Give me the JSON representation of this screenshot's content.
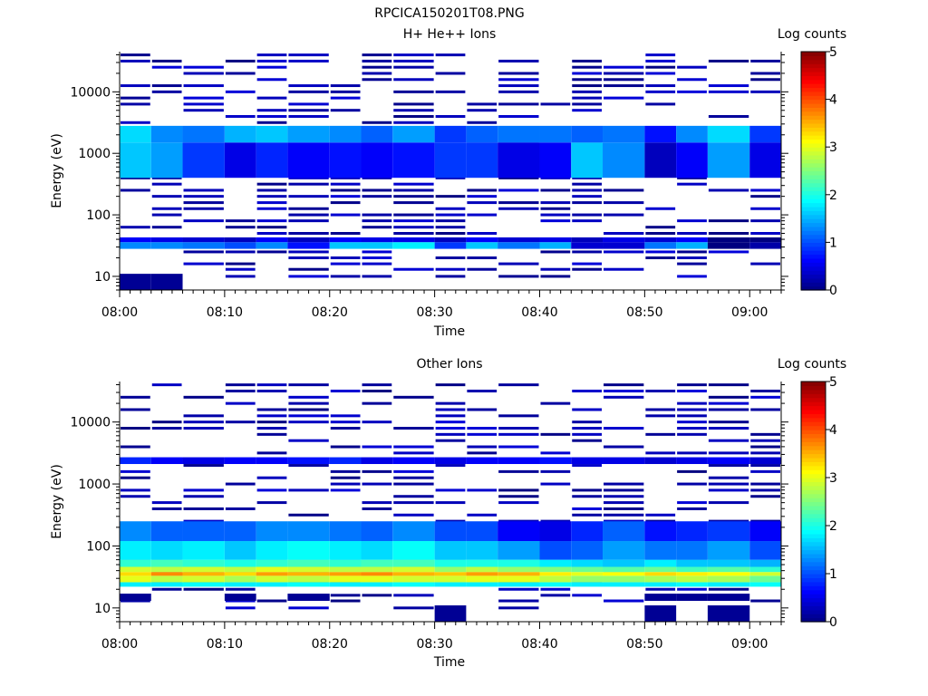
{
  "figure_title": "RPCICA150201T08.PNG",
  "chart_data": [
    {
      "type": "heatmap",
      "title": "H+ He++ Ions",
      "xlabel": "Time",
      "ylabel": "Energy (eV)",
      "x_ticks": [
        "08:00",
        "08:10",
        "08:20",
        "08:30",
        "08:40",
        "08:50",
        "09:00"
      ],
      "y_ticks": [
        "10",
        "100",
        "1000",
        "10000"
      ],
      "y_scale": "log",
      "ylim": [
        6,
        45000
      ],
      "xlim": [
        "08:00",
        "09:03"
      ],
      "colorbar": {
        "label": "Log counts",
        "ticks": [
          "0",
          "1",
          "2",
          "3",
          "4",
          "5"
        ],
        "range": [
          0,
          5
        ],
        "colormap": "jet"
      },
      "time_bins": [
        "08:00",
        "08:03",
        "08:06",
        "08:10",
        "08:13",
        "08:16",
        "08:20",
        "08:23",
        "08:26",
        "08:30",
        "08:33",
        "08:36",
        "08:40",
        "08:43",
        "08:46",
        "08:50",
        "08:53",
        "08:56",
        "09:00"
      ],
      "energy_bins_eV": [
        10,
        13,
        16,
        20,
        25,
        31,
        40,
        50,
        63,
        80,
        100,
        126,
        158,
        200,
        251,
        316,
        398,
        501,
        631,
        794,
        1000,
        1259,
        1585,
        1995,
        2512,
        3162,
        3981,
        5012,
        6310,
        7943,
        10000,
        12589,
        15849,
        19953,
        25119,
        31623,
        39811
      ],
      "bands": [
        {
          "e_min": 28,
          "e_max": 36,
          "log_counts": [
            1.3,
            1.3,
            1.2,
            1.0,
            1.3,
            0.7,
            1.6,
            1.6,
            1.8,
            0.9,
            1.6,
            1.2,
            1.5,
            0.4,
            0.4,
            1.2,
            1.5,
            0,
            0.2
          ]
        },
        {
          "e_min": 36,
          "e_max": 43,
          "log_counts": [
            0.6,
            0.5,
            0.4,
            0.3,
            0.6,
            0.3,
            0.6,
            0.5,
            0.5,
            0.3,
            0.6,
            0.4,
            0.5,
            0.3,
            0.5,
            0.4,
            0.6,
            0,
            0
          ]
        },
        {
          "e_min": 400,
          "e_max": 1500,
          "log_counts": [
            1.6,
            1.4,
            0.9,
            0.5,
            0.8,
            0.6,
            0.7,
            0.6,
            0.7,
            0.9,
            0.9,
            0.5,
            0.6,
            1.6,
            1.3,
            0.3,
            0.6,
            1.4,
            0.5
          ]
        },
        {
          "e_min": 1500,
          "e_max": 2800,
          "log_counts": [
            1.7,
            1.3,
            1.2,
            1.5,
            1.6,
            1.4,
            1.3,
            1.1,
            1.4,
            0.9,
            1.1,
            1.2,
            1.2,
            1.1,
            1.2,
            0.7,
            1.3,
            1.7,
            0.9
          ]
        },
        {
          "e_min": 6,
          "e_max": 11,
          "log_counts": [
            0.1,
            0.1,
            null,
            null,
            null,
            null,
            null,
            null,
            null,
            null,
            null,
            null,
            null,
            null,
            null,
            null,
            null,
            null,
            null
          ]
        }
      ]
    },
    {
      "type": "heatmap",
      "title": "Other Ions",
      "xlabel": "Time",
      "ylabel": "Energy (eV)",
      "x_ticks": [
        "08:00",
        "08:10",
        "08:20",
        "08:30",
        "08:40",
        "08:50",
        "09:00"
      ],
      "y_ticks": [
        "10",
        "100",
        "1000",
        "10000"
      ],
      "y_scale": "log",
      "ylim": [
        6,
        45000
      ],
      "xlim": [
        "08:00",
        "09:03"
      ],
      "colorbar": {
        "label": "Log counts",
        "ticks": [
          "0",
          "1",
          "2",
          "3",
          "4",
          "5"
        ],
        "range": [
          0,
          5
        ],
        "colormap": "jet"
      },
      "time_bins": [
        "08:00",
        "08:03",
        "08:06",
        "08:10",
        "08:13",
        "08:16",
        "08:20",
        "08:23",
        "08:26",
        "08:30",
        "08:33",
        "08:36",
        "08:40",
        "08:43",
        "08:46",
        "08:50",
        "08:53",
        "08:56",
        "09:00"
      ],
      "energy_bins_eV": [
        10,
        13,
        16,
        20,
        25,
        31,
        40,
        50,
        63,
        80,
        100,
        126,
        158,
        200,
        251,
        316,
        398,
        501,
        631,
        794,
        1000,
        1259,
        1585,
        1995,
        2512,
        3162,
        3981,
        5012,
        6310,
        7943,
        10000,
        12589,
        15849,
        19953,
        25119,
        31623,
        39811
      ],
      "bands": [
        {
          "e_min": 22,
          "e_max": 26,
          "log_counts": [
            1.8,
            1.8,
            1.9,
            1.8,
            1.8,
            1.9,
            1.8,
            1.8,
            1.9,
            1.8,
            1.8,
            1.8,
            1.9,
            1.8,
            1.8,
            1.8,
            1.9,
            1.8,
            1.9
          ]
        },
        {
          "e_min": 26,
          "e_max": 33,
          "log_counts": [
            3.0,
            2.8,
            2.9,
            2.7,
            2.9,
            2.8,
            3.0,
            3.0,
            2.9,
            2.9,
            3.0,
            3.0,
            2.8,
            2.6,
            2.6,
            2.7,
            2.8,
            2.7,
            2.4
          ]
        },
        {
          "e_min": 33,
          "e_max": 38,
          "log_counts": [
            3.3,
            3.7,
            3.5,
            3.3,
            3.6,
            3.5,
            3.6,
            3.7,
            3.5,
            3.4,
            3.6,
            3.5,
            3.2,
            3.0,
            3.1,
            3.3,
            3.2,
            3.1,
            2.9
          ]
        },
        {
          "e_min": 38,
          "e_max": 46,
          "log_counts": [
            2.9,
            2.8,
            2.9,
            2.8,
            3.0,
            2.9,
            2.8,
            2.8,
            2.9,
            2.6,
            2.8,
            2.6,
            2.5,
            2.4,
            2.3,
            2.4,
            2.2,
            2.3,
            2.1
          ]
        },
        {
          "e_min": 46,
          "e_max": 60,
          "log_counts": [
            2.1,
            2.2,
            2.1,
            2.0,
            2.1,
            2.2,
            2.1,
            2.2,
            2.2,
            2.0,
            2.0,
            2.0,
            1.8,
            1.7,
            1.6,
            1.8,
            1.6,
            1.6,
            1.5
          ]
        },
        {
          "e_min": 60,
          "e_max": 120,
          "log_counts": [
            1.8,
            1.7,
            1.8,
            1.6,
            1.8,
            1.9,
            1.8,
            1.7,
            1.9,
            1.6,
            1.6,
            1.4,
            1.0,
            1.1,
            1.4,
            1.2,
            1.2,
            1.4,
            1.0
          ]
        },
        {
          "e_min": 120,
          "e_max": 250,
          "log_counts": [
            1.3,
            1.1,
            1.1,
            1.1,
            1.3,
            1.3,
            1.2,
            1.1,
            1.3,
            1.0,
            1.0,
            0.6,
            0.5,
            0.8,
            1.1,
            0.7,
            0.8,
            0.9,
            0.6
          ]
        },
        {
          "e_min": 2100,
          "e_max": 2700,
          "log_counts": [
            0.8,
            0.6,
            0.5,
            0.6,
            0.6,
            0.7,
            0.8,
            0.5,
            0.6,
            0.5,
            0.6,
            0.6,
            0.7,
            0.5,
            0.5,
            0.4,
            0.5,
            0.6,
            0.4
          ]
        },
        {
          "e_min": 13,
          "e_max": 17,
          "log_counts": [
            0.1,
            null,
            null,
            0.1,
            null,
            0.1,
            null,
            null,
            null,
            null,
            null,
            null,
            null,
            null,
            null,
            0.1,
            0.1,
            0.1,
            null
          ]
        },
        {
          "e_min": 6,
          "e_max": 11,
          "log_counts": [
            null,
            null,
            null,
            null,
            null,
            null,
            null,
            null,
            null,
            0.1,
            null,
            null,
            null,
            null,
            null,
            0.1,
            null,
            0.1,
            null
          ]
        }
      ]
    }
  ]
}
